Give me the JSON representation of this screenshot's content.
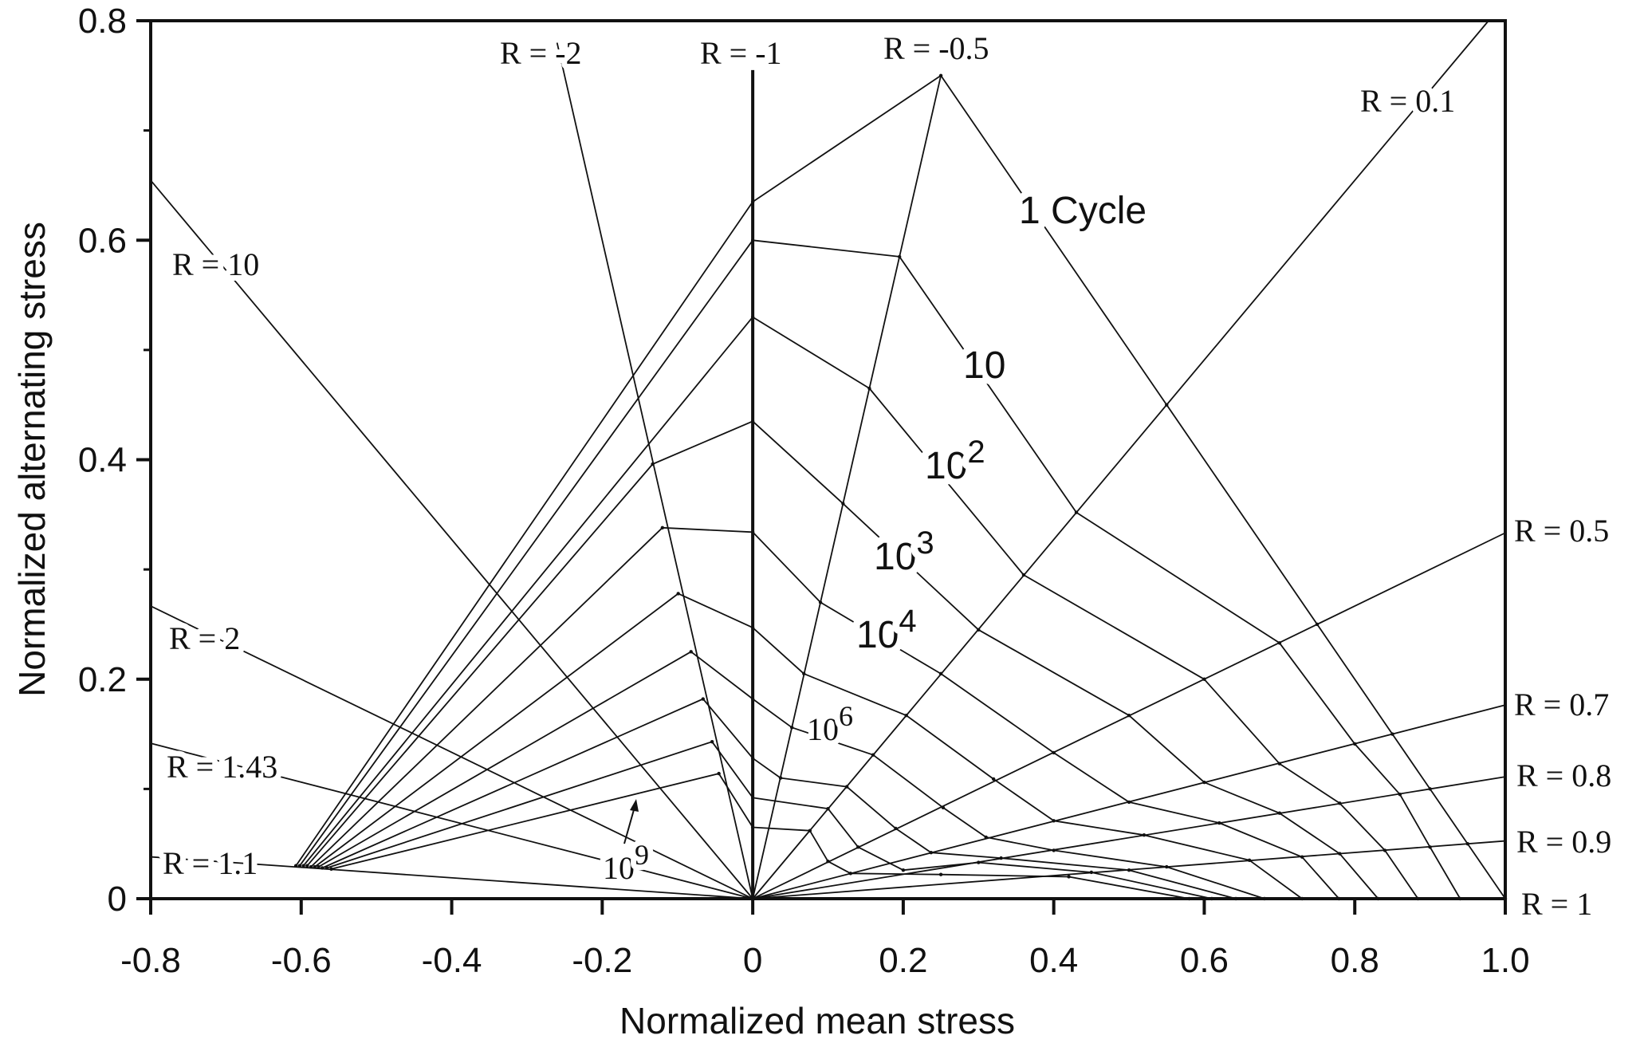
{
  "chart_data": {
    "type": "line",
    "title": "",
    "xlabel": "Normalized mean stress",
    "ylabel": "Normalized alternating stress",
    "xlim": [
      -0.8,
      1.0
    ],
    "ylim": [
      0,
      0.8
    ],
    "xticks": [
      "-0.8",
      "-0.6",
      "-0.4",
      "-0.2",
      "0",
      "0.2",
      "0.4",
      "0.6",
      "0.8",
      "1.0"
    ],
    "xtick_values": [
      -0.8,
      -0.6,
      -0.4,
      -0.2,
      0,
      0.2,
      0.4,
      0.6,
      0.8,
      1.0
    ],
    "yticks": [
      "0",
      "0.2",
      "0.4",
      "0.6",
      "0.8"
    ],
    "ytick_values": [
      0,
      0.2,
      0.4,
      0.6,
      0.8
    ],
    "grid": false,
    "color": "#111111",
    "r_lines": [
      {
        "R": -2,
        "label": "R = -2"
      },
      {
        "R": -1,
        "label": "R = -1"
      },
      {
        "R": -0.5,
        "label": "R = -0.5"
      },
      {
        "R": 0.1,
        "label": "R = 0.1"
      },
      {
        "R": 10,
        "label": "R = 10"
      },
      {
        "R": 2,
        "label": "R = 2"
      },
      {
        "R": 1.43,
        "label": "R = 1.43"
      },
      {
        "R": 1.1,
        "label": "R = 1.1"
      },
      {
        "R": 0.5,
        "label": "R = 0.5"
      },
      {
        "R": 0.7,
        "label": "R = 0.7"
      },
      {
        "R": 0.8,
        "label": "R = 0.8"
      },
      {
        "R": 0.9,
        "label": "R = 0.9"
      },
      {
        "R": 1,
        "label": "R = 1"
      }
    ],
    "curve_labels": {
      "c0": "1 Cycle",
      "c1": {
        "base": "10",
        "exp": ""
      },
      "c2": {
        "base": "10",
        "exp": "2"
      },
      "c3": {
        "base": "10",
        "exp": "3"
      },
      "c4": {
        "base": "10",
        "exp": "4"
      },
      "c6": {
        "base": "10",
        "exp": "6"
      },
      "c9": {
        "base": "10",
        "exp": "9"
      }
    },
    "series": [
      {
        "id": "c0",
        "points": [
          [
            -0.607,
            0.03
          ],
          [
            0,
            0.635
          ],
          [
            0.25,
            0.75
          ],
          [
            0.55,
            0.45
          ],
          [
            0.75,
            0.25
          ],
          [
            0.85,
            0.15
          ],
          [
            0.9,
            0.1
          ],
          [
            0.95,
            0.05
          ],
          [
            1.0,
            0
          ]
        ]
      },
      {
        "id": "c1",
        "points": [
          [
            -0.602,
            0.03
          ],
          [
            0,
            0.6
          ],
          [
            0.195,
            0.585
          ],
          [
            0.43,
            0.352
          ],
          [
            0.7,
            0.233
          ],
          [
            0.8,
            0.141
          ],
          [
            0.86,
            0.095
          ],
          [
            0.9,
            0.047
          ],
          [
            0.94,
            0
          ]
        ]
      },
      {
        "id": "c2",
        "points": [
          [
            -0.597,
            0.03
          ],
          [
            0,
            0.53
          ],
          [
            0.155,
            0.465
          ],
          [
            0.36,
            0.295
          ],
          [
            0.6,
            0.2
          ],
          [
            0.7,
            0.123
          ],
          [
            0.78,
            0.087
          ],
          [
            0.84,
            0.044
          ],
          [
            0.884,
            0
          ]
        ]
      },
      {
        "id": "c3",
        "points": [
          [
            -0.592,
            0.03
          ],
          [
            -0.133,
            0.396
          ],
          [
            0,
            0.435
          ],
          [
            0.12,
            0.36
          ],
          [
            0.3,
            0.245
          ],
          [
            0.5,
            0.167
          ],
          [
            0.6,
            0.106
          ],
          [
            0.7,
            0.078
          ],
          [
            0.78,
            0.041
          ],
          [
            0.831,
            0
          ]
        ]
      },
      {
        "id": "c4",
        "points": [
          [
            -0.587,
            0.029
          ],
          [
            -0.12,
            0.338
          ],
          [
            0,
            0.334
          ],
          [
            0.09,
            0.27
          ],
          [
            0.25,
            0.205
          ],
          [
            0.4,
            0.133
          ],
          [
            0.5,
            0.088
          ],
          [
            0.62,
            0.069
          ],
          [
            0.73,
            0.038
          ],
          [
            0.779,
            0
          ]
        ]
      },
      {
        "id": "c5",
        "points": [
          [
            -0.582,
            0.029
          ],
          [
            -0.099,
            0.278
          ],
          [
            0,
            0.247
          ],
          [
            0.068,
            0.205
          ],
          [
            0.204,
            0.167
          ],
          [
            0.32,
            0.109
          ],
          [
            0.4,
            0.071
          ],
          [
            0.52,
            0.058
          ],
          [
            0.66,
            0.035
          ],
          [
            0.73,
            0
          ]
        ]
      },
      {
        "id": "c6",
        "points": [
          [
            -0.577,
            0.029
          ],
          [
            -0.082,
            0.225
          ],
          [
            0,
            0.182
          ],
          [
            0.052,
            0.156
          ],
          [
            0.16,
            0.131
          ],
          [
            0.253,
            0.083
          ],
          [
            0.31,
            0.056
          ],
          [
            0.4,
            0.044
          ],
          [
            0.55,
            0.029
          ],
          [
            0.68,
            0
          ]
        ]
      },
      {
        "id": "c7",
        "points": [
          [
            -0.572,
            0.028
          ],
          [
            -0.066,
            0.182
          ],
          [
            0,
            0.128
          ],
          [
            0.037,
            0.11
          ],
          [
            0.125,
            0.102
          ],
          [
            0.19,
            0.064
          ],
          [
            0.237,
            0.042
          ],
          [
            0.33,
            0.037
          ],
          [
            0.5,
            0.026
          ],
          [
            0.642,
            0
          ]
        ]
      },
      {
        "id": "c8",
        "points": [
          [
            -0.566,
            0.028
          ],
          [
            -0.054,
            0.143
          ],
          [
            0,
            0.092
          ],
          [
            0.1,
            0.082
          ],
          [
            0.14,
            0.047
          ],
          [
            0.2,
            0.026
          ],
          [
            0.3,
            0.033
          ],
          [
            0.45,
            0.024
          ],
          [
            0.61,
            0
          ]
        ]
      },
      {
        "id": "c9",
        "points": [
          [
            -0.56,
            0.027
          ],
          [
            -0.045,
            0.114
          ],
          [
            0,
            0.065
          ],
          [
            0.076,
            0.062
          ],
          [
            0.1,
            0.034
          ],
          [
            0.13,
            0.023
          ],
          [
            0.25,
            0.022
          ],
          [
            0.42,
            0.02
          ],
          [
            0.58,
            0
          ]
        ]
      }
    ]
  }
}
